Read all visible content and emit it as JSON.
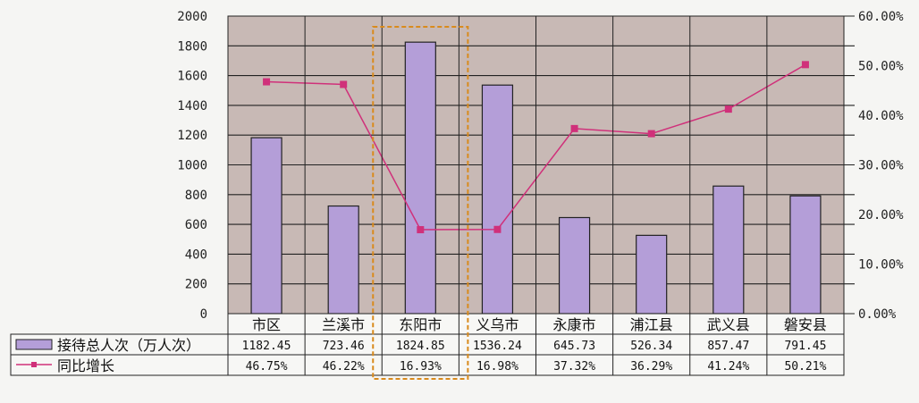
{
  "chart_data": {
    "type": "bar",
    "categories": [
      "市区",
      "兰溪市",
      "东阳市",
      "义乌市",
      "永康市",
      "浦江县",
      "武义县",
      "磐安县"
    ],
    "series": [
      {
        "name": "接待总人次（万人次）",
        "kind": "bar",
        "axis": "left",
        "color": "#b49ed8",
        "values": [
          1182.45,
          723.46,
          1824.85,
          1536.24,
          645.73,
          526.34,
          857.47,
          791.45
        ],
        "labels": [
          "1182.45",
          "723.46",
          "1824.85",
          "1536.24",
          "645.73",
          "526.34",
          "857.47",
          "791.45"
        ]
      },
      {
        "name": "同比增长",
        "kind": "line",
        "axis": "right",
        "color": "#d0307a",
        "values": [
          46.75,
          46.22,
          16.93,
          16.98,
          37.32,
          36.29,
          41.24,
          50.21
        ],
        "labels": [
          "46.75%",
          "46.22%",
          "16.93%",
          "16.98%",
          "37.32%",
          "36.29%",
          "41.24%",
          "50.21%"
        ]
      }
    ],
    "y_left": {
      "ylim": [
        0,
        2000
      ],
      "ticks": [
        "0",
        "200",
        "400",
        "600",
        "800",
        "1000",
        "1200",
        "1400",
        "1600",
        "1800",
        "2000"
      ]
    },
    "y_right": {
      "ylim": [
        0,
        60
      ],
      "ticks": [
        "0.00%",
        "10.00%",
        "20.00%",
        "30.00%",
        "40.00%",
        "50.00%",
        "60.00%"
      ]
    },
    "highlight_category": "东阳市",
    "plot_background": "#c8b9b5",
    "grid": true,
    "legend": "data-table"
  }
}
